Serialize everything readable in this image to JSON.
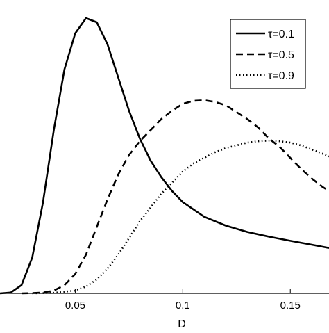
{
  "chart_data": {
    "type": "line",
    "title": "",
    "xlabel": "D",
    "ylabel": "",
    "xlim": [
      0.015,
      0.168
    ],
    "ylim": [
      0,
      1
    ],
    "xticks": [
      {
        "value": 0.05,
        "label": "0.05"
      },
      {
        "value": 0.1,
        "label": "0.1"
      },
      {
        "value": 0.15,
        "label": "0.15"
      }
    ],
    "grid": false,
    "legend_position": "top-right",
    "series": [
      {
        "name": "τ=0.1",
        "style": "solid",
        "color": "#000000",
        "points": [
          [
            0.015,
            0.0
          ],
          [
            0.02,
            0.003
          ],
          [
            0.025,
            0.03
          ],
          [
            0.03,
            0.13
          ],
          [
            0.035,
            0.33
          ],
          [
            0.04,
            0.59
          ],
          [
            0.045,
            0.81
          ],
          [
            0.05,
            0.94
          ],
          [
            0.055,
            0.995
          ],
          [
            0.06,
            0.98
          ],
          [
            0.065,
            0.9
          ],
          [
            0.07,
            0.78
          ],
          [
            0.075,
            0.66
          ],
          [
            0.08,
            0.56
          ],
          [
            0.085,
            0.48
          ],
          [
            0.09,
            0.42
          ],
          [
            0.095,
            0.37
          ],
          [
            0.1,
            0.33
          ],
          [
            0.11,
            0.277
          ],
          [
            0.12,
            0.245
          ],
          [
            0.13,
            0.222
          ],
          [
            0.14,
            0.205
          ],
          [
            0.15,
            0.19
          ],
          [
            0.16,
            0.176
          ],
          [
            0.168,
            0.164
          ]
        ]
      },
      {
        "name": "τ=0.5",
        "style": "dashed",
        "color": "#000000",
        "points": [
          [
            0.025,
            0.0
          ],
          [
            0.03,
            0.001
          ],
          [
            0.035,
            0.003
          ],
          [
            0.04,
            0.01
          ],
          [
            0.045,
            0.03
          ],
          [
            0.05,
            0.07
          ],
          [
            0.055,
            0.14
          ],
          [
            0.06,
            0.24
          ],
          [
            0.065,
            0.34
          ],
          [
            0.07,
            0.43
          ],
          [
            0.075,
            0.5
          ],
          [
            0.08,
            0.55
          ],
          [
            0.085,
            0.59
          ],
          [
            0.09,
            0.63
          ],
          [
            0.095,
            0.66
          ],
          [
            0.1,
            0.685
          ],
          [
            0.105,
            0.696
          ],
          [
            0.11,
            0.698
          ],
          [
            0.115,
            0.692
          ],
          [
            0.12,
            0.68
          ],
          [
            0.125,
            0.655
          ],
          [
            0.13,
            0.63
          ],
          [
            0.135,
            0.6
          ],
          [
            0.14,
            0.56
          ],
          [
            0.145,
            0.53
          ],
          [
            0.15,
            0.49
          ],
          [
            0.155,
            0.45
          ],
          [
            0.16,
            0.415
          ],
          [
            0.165,
            0.385
          ],
          [
            0.168,
            0.37
          ]
        ]
      },
      {
        "name": "τ=0.9",
        "style": "dotted",
        "color": "#000000",
        "points": [
          [
            0.03,
            0.0
          ],
          [
            0.04,
            0.002
          ],
          [
            0.05,
            0.01
          ],
          [
            0.055,
            0.025
          ],
          [
            0.06,
            0.05
          ],
          [
            0.065,
            0.09
          ],
          [
            0.07,
            0.14
          ],
          [
            0.075,
            0.2
          ],
          [
            0.08,
            0.26
          ],
          [
            0.085,
            0.31
          ],
          [
            0.09,
            0.36
          ],
          [
            0.095,
            0.4
          ],
          [
            0.1,
            0.44
          ],
          [
            0.105,
            0.47
          ],
          [
            0.11,
            0.49
          ],
          [
            0.115,
            0.51
          ],
          [
            0.12,
            0.525
          ],
          [
            0.125,
            0.535
          ],
          [
            0.13,
            0.545
          ],
          [
            0.135,
            0.55
          ],
          [
            0.14,
            0.552
          ],
          [
            0.145,
            0.55
          ],
          [
            0.15,
            0.545
          ],
          [
            0.155,
            0.535
          ],
          [
            0.16,
            0.52
          ],
          [
            0.165,
            0.505
          ],
          [
            0.168,
            0.495
          ]
        ]
      }
    ]
  }
}
